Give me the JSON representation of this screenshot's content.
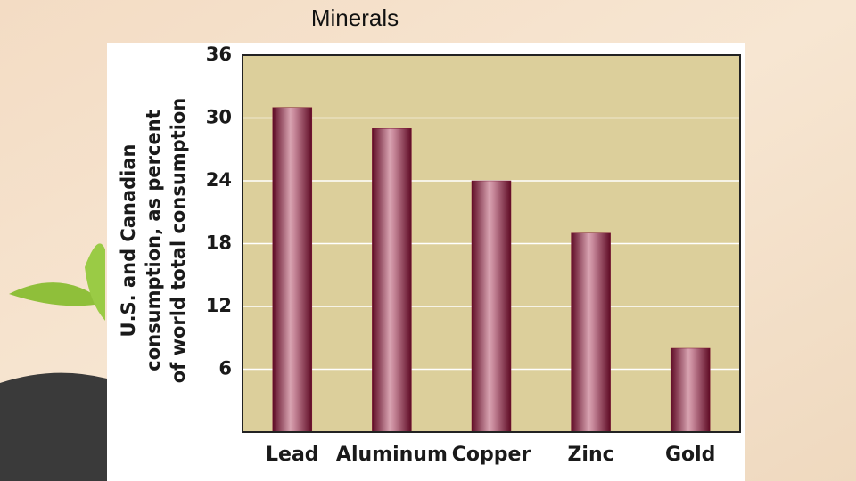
{
  "chart_data": {
    "type": "bar",
    "title": "Minerals",
    "ylabel": [
      "U.S. and Canadian",
      "consumption, as percent",
      "of world total consumption"
    ],
    "categories": [
      "Lead",
      "Aluminum",
      "Copper",
      "Zinc",
      "Gold"
    ],
    "values": [
      31,
      29,
      24,
      19,
      8
    ],
    "color": "#7a1532",
    "ylim": [
      0,
      36
    ],
    "yticks": [
      6,
      12,
      18,
      24,
      30,
      36
    ],
    "grid": true
  }
}
